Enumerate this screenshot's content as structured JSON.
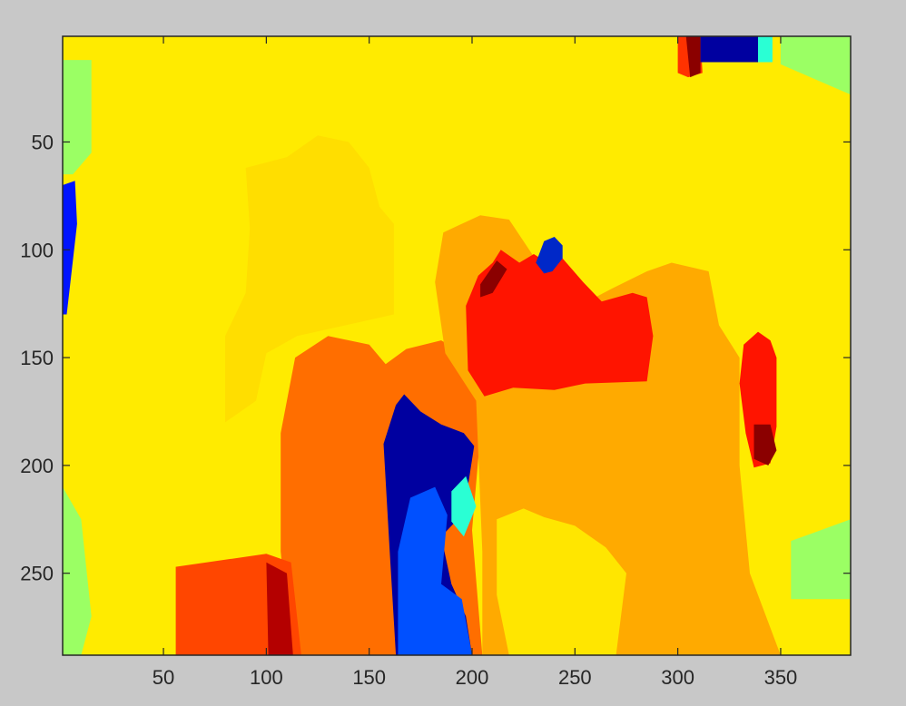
{
  "chart_data": {
    "type": "heatmap",
    "colormap": "jet",
    "title": "",
    "xlabel": "",
    "ylabel": "",
    "xlim": [
      1,
      384
    ],
    "ylim": [
      1,
      288
    ],
    "y_direction": "reversed",
    "grid": false,
    "legend": "none",
    "x_ticks": [
      50,
      100,
      150,
      200,
      250,
      300,
      350
    ],
    "y_ticks": [
      50,
      100,
      150,
      200,
      250
    ],
    "x_tick_labels": [
      "50",
      "100",
      "150",
      "200",
      "250",
      "300",
      "350"
    ],
    "y_tick_labels": [
      "50",
      "100",
      "150",
      "200",
      "250"
    ],
    "regions": [
      {
        "name": "right-edge-green",
        "color": "#9BFF64",
        "points": [
          [
            350,
            1
          ],
          [
            384,
            1
          ],
          [
            384,
            28
          ],
          [
            350,
            14
          ]
        ]
      },
      {
        "name": "left-edge-green",
        "color": "#9BFF64",
        "points": [
          [
            1,
            12
          ],
          [
            15,
            12
          ],
          [
            15,
            55
          ],
          [
            6,
            65
          ],
          [
            1,
            65
          ]
        ]
      },
      {
        "name": "left-edge-lower-green",
        "color": "#9BFF64",
        "points": [
          [
            1,
            210
          ],
          [
            10,
            225
          ],
          [
            15,
            270
          ],
          [
            10,
            288
          ],
          [
            1,
            288
          ]
        ]
      },
      {
        "name": "right-edge-lower-green",
        "color": "#9BFF64",
        "points": [
          [
            355,
            235
          ],
          [
            384,
            225
          ],
          [
            384,
            262
          ],
          [
            355,
            262
          ]
        ]
      },
      {
        "name": "upper-left-amber",
        "color": "#FFDE00",
        "points": [
          [
            90,
            62
          ],
          [
            110,
            57
          ],
          [
            125,
            47
          ],
          [
            140,
            50
          ],
          [
            150,
            62
          ],
          [
            155,
            80
          ],
          [
            162,
            88
          ],
          [
            162,
            130
          ],
          [
            115,
            140
          ],
          [
            100,
            148
          ],
          [
            95,
            170
          ],
          [
            80,
            180
          ],
          [
            80,
            140
          ],
          [
            90,
            120
          ],
          [
            92,
            90
          ]
        ]
      },
      {
        "name": "left-orange-block",
        "color": "#FF6E00",
        "points": [
          [
            114,
            150
          ],
          [
            130,
            140
          ],
          [
            150,
            144
          ],
          [
            158,
            153
          ],
          [
            168,
            146
          ],
          [
            185,
            142
          ],
          [
            203,
            152
          ],
          [
            204,
            186
          ],
          [
            200,
            230
          ],
          [
            205,
            288
          ],
          [
            112,
            288
          ],
          [
            107,
            240
          ],
          [
            107,
            185
          ]
        ]
      },
      {
        "name": "middle-orange-block",
        "color": "#FFAA00",
        "points": [
          [
            182,
            115
          ],
          [
            186,
            92
          ],
          [
            204,
            84
          ],
          [
            218,
            86
          ],
          [
            232,
            106
          ],
          [
            260,
            122
          ],
          [
            268,
            118
          ],
          [
            285,
            110
          ],
          [
            297,
            106
          ],
          [
            315,
            110
          ],
          [
            320,
            135
          ],
          [
            330,
            150
          ],
          [
            330,
            200
          ],
          [
            335,
            250
          ],
          [
            350,
            288
          ],
          [
            205,
            288
          ],
          [
            205,
            240
          ],
          [
            202,
            170
          ],
          [
            187,
            148
          ]
        ]
      },
      {
        "name": "lower-yellow",
        "color": "#FFE600",
        "points": [
          [
            212,
            225
          ],
          [
            225,
            220
          ],
          [
            235,
            224
          ],
          [
            250,
            228
          ],
          [
            265,
            238
          ],
          [
            275,
            250
          ],
          [
            270,
            288
          ],
          [
            218,
            288
          ],
          [
            212,
            260
          ]
        ]
      },
      {
        "name": "lower-left-red",
        "color": "#FF4600",
        "points": [
          [
            56,
            247
          ],
          [
            100,
            241
          ],
          [
            112,
            245
          ],
          [
            117,
            288
          ],
          [
            56,
            288
          ]
        ]
      },
      {
        "name": "dark-red-stripe",
        "color": "#B40000",
        "points": [
          [
            100,
            245
          ],
          [
            110,
            250
          ],
          [
            113,
            288
          ],
          [
            101,
            288
          ]
        ]
      },
      {
        "name": "upper-red-blob",
        "color": "#FF1400",
        "points": [
          [
            197,
            126
          ],
          [
            203,
            112
          ],
          [
            210,
            106
          ],
          [
            214,
            100
          ],
          [
            223,
            106
          ],
          [
            230,
            102
          ],
          [
            240,
            108
          ],
          [
            244,
            104
          ],
          [
            254,
            115
          ],
          [
            263,
            124
          ],
          [
            278,
            120
          ],
          [
            285,
            122
          ],
          [
            288,
            140
          ],
          [
            285,
            161
          ],
          [
            255,
            162
          ],
          [
            240,
            165
          ],
          [
            220,
            164
          ],
          [
            206,
            168
          ],
          [
            198,
            156
          ]
        ]
      },
      {
        "name": "upper-red-dark-edge",
        "color": "#8B0000",
        "points": [
          [
            204,
            116
          ],
          [
            212,
            105
          ],
          [
            217,
            109
          ],
          [
            210,
            120
          ],
          [
            204,
            122
          ]
        ]
      },
      {
        "name": "navy-top-nub",
        "color": "#0028C8",
        "points": [
          [
            231,
            106
          ],
          [
            235,
            96
          ],
          [
            240,
            94
          ],
          [
            244,
            98
          ],
          [
            244,
            104
          ],
          [
            239,
            110
          ],
          [
            235,
            111
          ]
        ]
      },
      {
        "name": "central-navy-column",
        "color": "#0000A0",
        "points": [
          [
            163,
            172
          ],
          [
            167,
            167
          ],
          [
            175,
            175
          ],
          [
            185,
            181
          ],
          [
            196,
            185
          ],
          [
            201,
            191
          ],
          [
            196,
            222
          ],
          [
            185,
            233
          ],
          [
            190,
            255
          ],
          [
            197,
            270
          ],
          [
            200,
            288
          ],
          [
            163,
            288
          ],
          [
            160,
            240
          ],
          [
            157,
            190
          ]
        ]
      },
      {
        "name": "central-blue-column",
        "color": "#0050FF",
        "points": [
          [
            170,
            215
          ],
          [
            182,
            210
          ],
          [
            188,
            223
          ],
          [
            185,
            255
          ],
          [
            195,
            262
          ],
          [
            200,
            288
          ],
          [
            164,
            288
          ],
          [
            164,
            240
          ]
        ]
      },
      {
        "name": "central-cyan-sliver",
        "color": "#2AFFD4",
        "points": [
          [
            190,
            212
          ],
          [
            197,
            205
          ],
          [
            202,
            219
          ],
          [
            196,
            233
          ],
          [
            190,
            226
          ]
        ]
      },
      {
        "name": "right-red-blob",
        "color": "#FF1400",
        "points": [
          [
            332,
            144
          ],
          [
            339,
            138
          ],
          [
            345,
            142
          ],
          [
            348,
            150
          ],
          [
            348,
            182
          ],
          [
            345,
            199
          ],
          [
            337,
            201
          ],
          [
            333,
            185
          ],
          [
            330,
            162
          ]
        ]
      },
      {
        "name": "right-dark-red",
        "color": "#8B0000",
        "points": [
          [
            337,
            181
          ],
          [
            345,
            181
          ],
          [
            348,
            193
          ],
          [
            344,
            200
          ],
          [
            337,
            197
          ]
        ]
      },
      {
        "name": "top-red-patch",
        "color": "#FF3200",
        "points": [
          [
            300,
            1
          ],
          [
            311,
            1
          ],
          [
            312,
            18
          ],
          [
            305,
            20
          ],
          [
            300,
            18
          ]
        ]
      },
      {
        "name": "top-dark-red",
        "color": "#8B0000",
        "points": [
          [
            304,
            1
          ],
          [
            311,
            1
          ],
          [
            311,
            18
          ],
          [
            306,
            20
          ]
        ]
      },
      {
        "name": "top-navy-band",
        "color": "#0000A0",
        "points": [
          [
            311,
            1
          ],
          [
            345,
            1
          ],
          [
            345,
            13
          ],
          [
            311,
            13
          ]
        ]
      },
      {
        "name": "top-cyan-sliver",
        "color": "#2AFFD4",
        "points": [
          [
            339,
            1
          ],
          [
            346,
            1
          ],
          [
            346,
            13
          ],
          [
            339,
            13
          ]
        ]
      },
      {
        "name": "left-edge-blue",
        "color": "#0014FF",
        "points": [
          [
            1,
            70
          ],
          [
            7,
            68
          ],
          [
            8,
            88
          ],
          [
            3,
            130
          ],
          [
            1,
            130
          ]
        ]
      }
    ]
  }
}
